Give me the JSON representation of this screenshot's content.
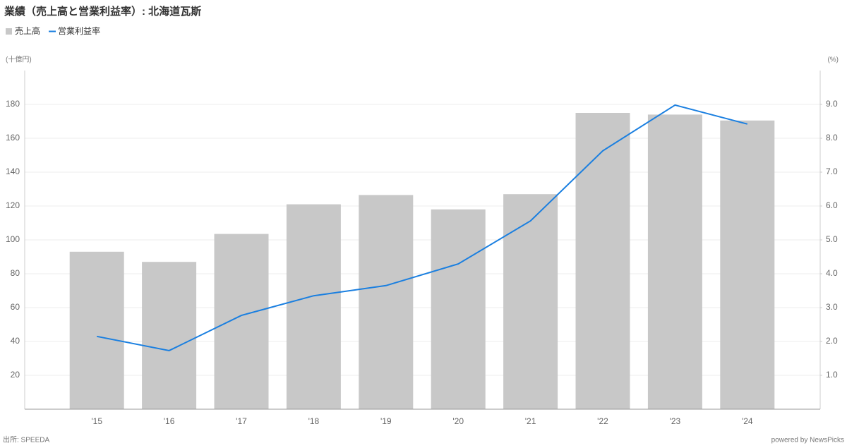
{
  "chart_data": {
    "type": "bar-line",
    "title": "業績（売上高と営業利益率）: 北海道瓦斯",
    "y_label": "(十億円)",
    "y2_label": "(%)",
    "source": "出所: SPEEDA",
    "credit": "powered by NewsPicks",
    "categories": [
      "'15",
      "'16",
      "'17",
      "'18",
      "'19",
      "'20",
      "'21",
      "'22",
      "'23",
      "'24"
    ],
    "series": [
      {
        "name": "売上高",
        "type": "bar",
        "color": "#c8c8c8",
        "values": [
          93,
          87,
          103.5,
          121,
          126.5,
          118,
          127,
          175,
          174,
          170.5
        ]
      },
      {
        "name": "営業利益率",
        "type": "line",
        "color": "#1a7fe0",
        "axis": "y2",
        "values": [
          2.15,
          1.73,
          2.77,
          3.35,
          3.65,
          4.29,
          5.56,
          7.63,
          8.98,
          8.42
        ]
      }
    ],
    "ylim": [
      0,
      180
    ],
    "yticks": [
      20,
      40,
      60,
      80,
      100,
      120,
      140,
      160,
      180
    ],
    "y2lim": [
      0,
      9
    ],
    "y2ticks": [
      {
        "value": 1,
        "label": "1.0"
      },
      {
        "value": 2,
        "label": "2.0"
      },
      {
        "value": 3,
        "label": "3.0"
      },
      {
        "value": 4,
        "label": "4.0"
      },
      {
        "value": 5,
        "label": "5.0"
      },
      {
        "value": 6,
        "label": "6.0"
      },
      {
        "value": 7,
        "label": "7.0"
      },
      {
        "value": 8,
        "label": "8.0"
      },
      {
        "value": 9,
        "label": "9.0"
      }
    ],
    "grid": true
  }
}
